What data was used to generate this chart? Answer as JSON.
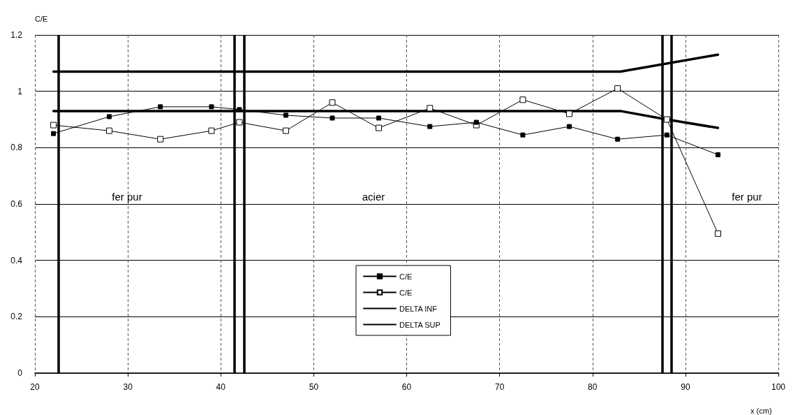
{
  "chart_data": {
    "type": "line",
    "xlabel": "x (cm)",
    "ylabel": "C/E",
    "xlim": [
      20,
      100
    ],
    "xticks": [
      20,
      30,
      40,
      50,
      60,
      70,
      80,
      90,
      100
    ],
    "ylim": [
      0,
      1.2
    ],
    "yticks": [
      0,
      0.2,
      0.4,
      0.6,
      0.8,
      1,
      1.2
    ],
    "grid": true,
    "legend": "bottom",
    "series": [
      {
        "name": "C/E",
        "color": "#000000",
        "marker": "square",
        "x": [
          22,
          28,
          33.5,
          39,
          42,
          47,
          52,
          57,
          62.5,
          67.5,
          72.5,
          77.5,
          82.7,
          88,
          93.5
        ],
        "values": [
          0.85,
          0.91,
          0.945,
          0.945,
          0.935,
          0.915,
          0.905,
          0.905,
          0.875,
          0.89,
          0.845,
          0.875,
          0.83,
          0.845,
          0.775
        ]
      },
      {
        "name": "C/E",
        "color": "#000000",
        "marker": "square",
        "x": [
          22,
          28,
          33.5,
          39,
          42,
          47,
          52,
          57,
          62.5,
          67.5,
          72.5,
          77.5,
          82.7,
          88,
          93.5
        ],
        "values": [
          0.88,
          0.86,
          0.83,
          0.86,
          0.89,
          0.86,
          0.96,
          0.87,
          0.94,
          0.88,
          0.97,
          0.92,
          1.01,
          0.9,
          0.495
        ]
      },
      {
        "name": "DELTA INF",
        "color": "#000000",
        "marker": "none",
        "x": [
          22,
          83,
          88,
          93.5
        ],
        "values": [
          0.93,
          0.93,
          0.9,
          0.87
        ]
      },
      {
        "name": "DELTA SUP",
        "color": "#000000",
        "marker": "none",
        "x": [
          22,
          83,
          93.5
        ],
        "values": [
          1.07,
          1.07,
          1.13
        ]
      }
    ],
    "ref_lines": [
      {
        "axis": "x",
        "value": 22.5,
        "color": "#000000"
      },
      {
        "axis": "x",
        "value": 41.5,
        "color": "#000000"
      },
      {
        "axis": "x",
        "value": 42.5,
        "color": "#000000"
      },
      {
        "axis": "x",
        "value": 87.5,
        "color": "#000000"
      },
      {
        "axis": "x",
        "value": 88.5,
        "color": "#000000"
      }
    ],
    "annotations": [
      "fer pur",
      "acier",
      "fer pur"
    ]
  }
}
